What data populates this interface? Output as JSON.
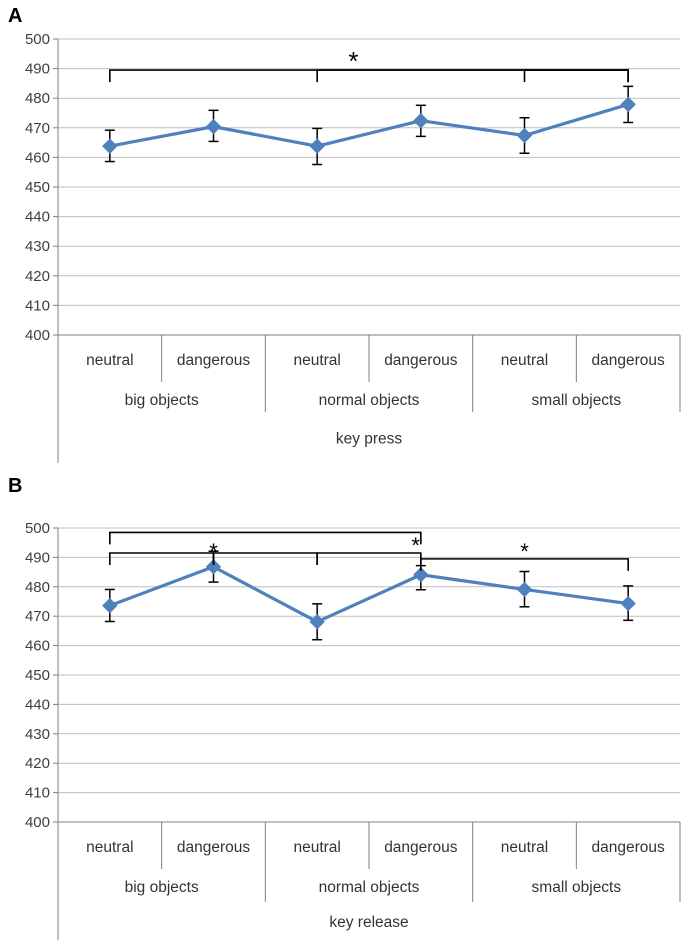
{
  "chart_data": [
    {
      "type": "line",
      "panel": "A",
      "title": "",
      "xlabel": "key press",
      "ylabel": "",
      "ylim": [
        400,
        500
      ],
      "yticks": [
        "500",
        "490",
        "480",
        "470",
        "460",
        "450",
        "440",
        "430",
        "420",
        "410",
        "400"
      ],
      "grid": true,
      "categories": [
        "neutral",
        "dangerous",
        "neutral",
        "dangerous",
        "neutral",
        "dangerous"
      ],
      "groups": [
        "big objects",
        "normal objects",
        "small  objects"
      ],
      "series": [
        {
          "name": "key press",
          "color": "#4F81BD",
          "values": [
            463.8,
            470.4,
            463.8,
            472.4,
            467.4,
            477.9
          ],
          "error_low": [
            458.6,
            465.4,
            457.6,
            467.1,
            461.4,
            471.8
          ],
          "error_high": [
            469.2,
            475.9,
            469.8,
            477.6,
            473.4,
            484.0
          ]
        }
      ],
      "significance": [
        {
          "label": "*",
          "brackets": [
            {
              "from": 0,
              "to": 5,
              "y": 489.5
            },
            {
              "from": 2,
              "to": 5,
              "y": 489.5
            },
            {
              "from": 4,
              "to": 5,
              "y": 489.5
            }
          ],
          "label_at": 2.35,
          "label_y": 491.5
        }
      ]
    },
    {
      "type": "line",
      "panel": "B",
      "title": "",
      "xlabel": "key release",
      "ylabel": "",
      "ylim": [
        400,
        500
      ],
      "yticks": [
        "500",
        "490",
        "480",
        "470",
        "460",
        "450",
        "440",
        "430",
        "420",
        "410",
        "400"
      ],
      "grid": true,
      "categories": [
        "neutral",
        "dangerous",
        "neutral",
        "dangerous",
        "neutral",
        "dangerous"
      ],
      "groups": [
        "big  objects",
        "normal objects",
        "small  objects"
      ],
      "series": [
        {
          "name": "key release",
          "color": "#4F81BD",
          "values": [
            473.6,
            486.8,
            468.1,
            484.1,
            479.1,
            474.3
          ],
          "error_low": [
            468.2,
            481.6,
            462.0,
            479.0,
            473.2,
            468.6
          ],
          "error_high": [
            479.1,
            492.1,
            474.2,
            487.2,
            485.2,
            480.3
          ]
        }
      ],
      "significance": [
        {
          "label": "*",
          "brackets": [
            {
              "from": 0,
              "to": 3,
              "y": 498.5
            },
            {
              "from": 0,
              "to": 1,
              "y": 491.5
            }
          ],
          "label_at": 1.0,
          "label_y": 491.5
        },
        {
          "label": "*",
          "brackets": [
            {
              "from": 1,
              "to": 2,
              "y": 491.5
            },
            {
              "from": 2,
              "to": 3,
              "y": 491.5
            }
          ],
          "label_at": 2.95,
          "label_y": 493.5
        },
        {
          "label": "*",
          "brackets": [
            {
              "from": 3,
              "to": 5,
              "y": 489.5
            }
          ],
          "label_at": 4.0,
          "label_y": 491.5
        }
      ]
    }
  ]
}
